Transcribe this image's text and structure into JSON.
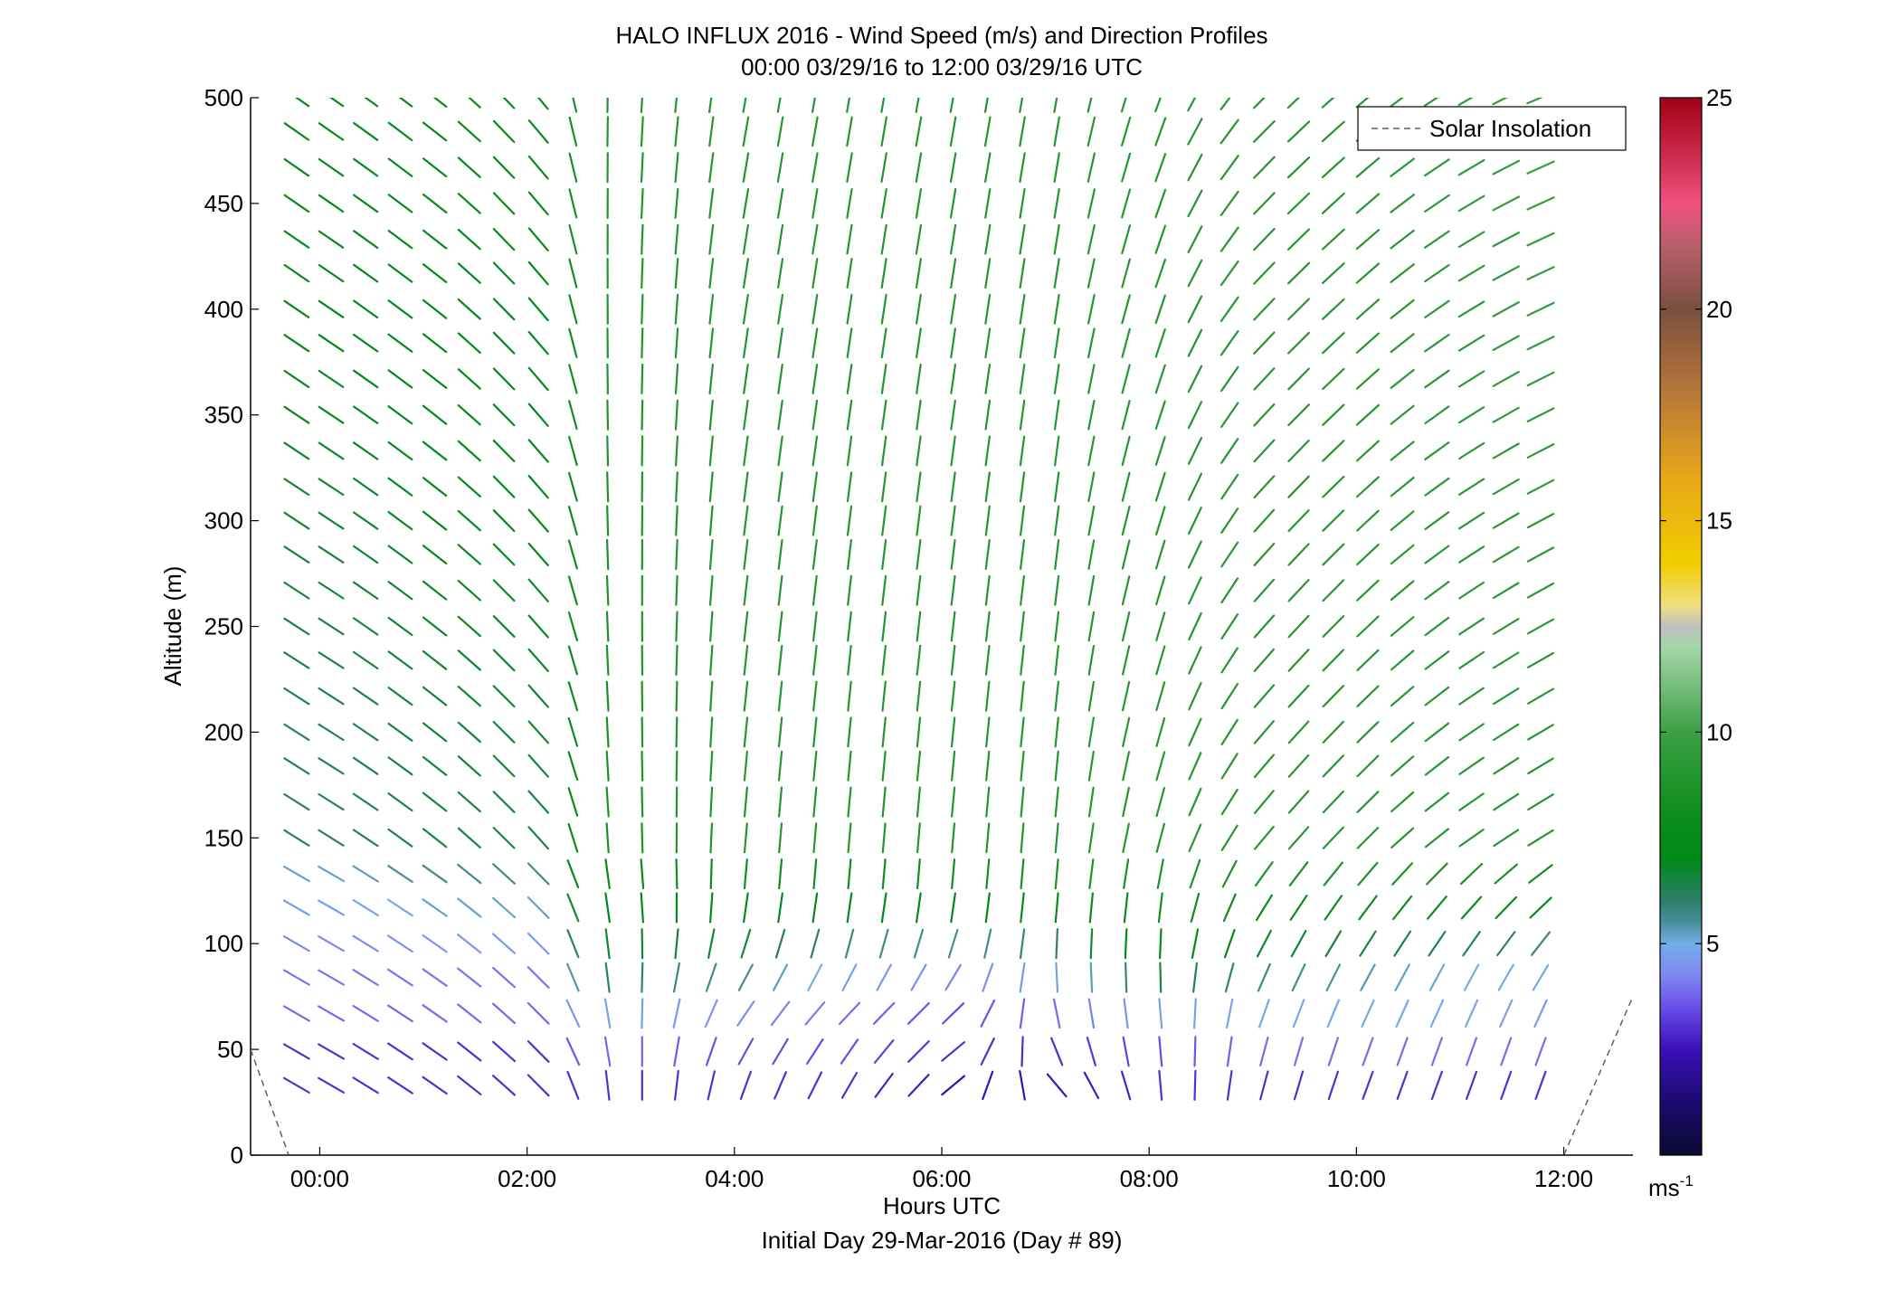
{
  "chart_data": {
    "type": "quiver",
    "title_line1": "HALO INFLUX 2016 - Wind Speed (m/s) and Direction Profiles",
    "title_line2": "00:00 03/29/16 to 12:00 03/29/16  UTC",
    "xlabel": "Hours UTC",
    "xlabel2": "Initial Day 29-Mar-2016 (Day # 89)",
    "ylabel": "Altitude (m)",
    "colorbar_label": "ms",
    "colorbar_label_sup": "-1",
    "legend_label": "Solar Insolation",
    "xlim_hours": [
      -0.667,
      12.667
    ],
    "ylim": [
      0,
      500
    ],
    "x_ticks": [
      {
        "h": 0,
        "label": "00:00"
      },
      {
        "h": 2,
        "label": "02:00"
      },
      {
        "h": 4,
        "label": "04:00"
      },
      {
        "h": 6,
        "label": "06:00"
      },
      {
        "h": 8,
        "label": "08:00"
      },
      {
        "h": 10,
        "label": "10:00"
      },
      {
        "h": 12,
        "label": "12:00"
      }
    ],
    "y_ticks": [
      {
        "v": 0,
        "label": "0"
      },
      {
        "v": 50,
        "label": "50"
      },
      {
        "v": 100,
        "label": "100"
      },
      {
        "v": 150,
        "label": "150"
      },
      {
        "v": 200,
        "label": "200"
      },
      {
        "v": 250,
        "label": "250"
      },
      {
        "v": 300,
        "label": "300"
      },
      {
        "v": 350,
        "label": "350"
      },
      {
        "v": 400,
        "label": "400"
      },
      {
        "v": 450,
        "label": "450"
      },
      {
        "v": 500,
        "label": "500"
      }
    ],
    "colorbar_ticks": [
      {
        "v": 5,
        "label": "5"
      },
      {
        "v": 10,
        "label": "10"
      },
      {
        "v": 15,
        "label": "15"
      },
      {
        "v": 20,
        "label": "20"
      },
      {
        "v": 25,
        "label": "25"
      }
    ],
    "colorbar_range": [
      0,
      25
    ],
    "colormap_stops": [
      {
        "v": 0,
        "c": "#0a0a30"
      },
      {
        "v": 1.2,
        "c": "#1a0a6e"
      },
      {
        "v": 2.5,
        "c": "#3a10b8"
      },
      {
        "v": 3.5,
        "c": "#6a4ee8"
      },
      {
        "v": 4.3,
        "c": "#7e8cf0"
      },
      {
        "v": 5.0,
        "c": "#72aee8"
      },
      {
        "v": 5.5,
        "c": "#4a8e9a"
      },
      {
        "v": 6.0,
        "c": "#2e7e6a"
      },
      {
        "v": 7.0,
        "c": "#008a18"
      },
      {
        "v": 8.0,
        "c": "#0c8c1c"
      },
      {
        "v": 10.0,
        "c": "#3ca044"
      },
      {
        "v": 12.0,
        "c": "#a4d6a8"
      },
      {
        "v": 12.5,
        "c": "#c0c0c0"
      },
      {
        "v": 13.0,
        "c": "#f0e080"
      },
      {
        "v": 14.0,
        "c": "#f0cc00"
      },
      {
        "v": 16.0,
        "c": "#e8a818"
      },
      {
        "v": 18.0,
        "c": "#b87838"
      },
      {
        "v": 20.0,
        "c": "#7a5040"
      },
      {
        "v": 21.5,
        "c": "#b8606a"
      },
      {
        "v": 22.5,
        "c": "#f05080"
      },
      {
        "v": 24.0,
        "c": "#c0203a"
      },
      {
        "v": 25.0,
        "c": "#a00018"
      }
    ],
    "solar_insolation": {
      "left": [
        [
          -0.667,
          50
        ],
        [
          -0.3,
          0
        ]
      ],
      "right": [
        [
          12.0,
          0
        ],
        [
          12.667,
          75
        ]
      ]
    },
    "times_h": [
      -0.333,
      0,
      0.333,
      0.667,
      1.0,
      1.333,
      1.667,
      2.0,
      2.333,
      2.667,
      3.0,
      3.333,
      3.667,
      4.0,
      4.333,
      4.667,
      5.0,
      5.333,
      5.667,
      6.0,
      6.333,
      6.667,
      7.0,
      7.333,
      7.667,
      8.0,
      8.333,
      8.667,
      9.0,
      9.333,
      9.667,
      10.0,
      10.333,
      10.667,
      11.0,
      11.333,
      11.667
    ],
    "altitudes": [
      33,
      49,
      67,
      84,
      100,
      117,
      133,
      150,
      167,
      184,
      200,
      217,
      234,
      250,
      267,
      284,
      300,
      316,
      333,
      350,
      367,
      384,
      400,
      417,
      433,
      450,
      467,
      484,
      500
    ],
    "profile_altitudes": [
      40,
      50,
      70,
      90,
      110,
      130,
      150,
      170,
      190,
      210,
      230,
      250,
      270,
      290,
      310,
      330,
      350,
      370,
      390,
      410,
      430,
      450
    ],
    "profiles": [
      {
        "t": 0,
        "a": [
          [
            120,
            3
          ],
          [
            120,
            3
          ],
          [
            120,
            4
          ],
          [
            120,
            4
          ],
          [
            120,
            4.5
          ],
          [
            120,
            5
          ],
          [
            122,
            6
          ],
          [
            125,
            7.5
          ]
        ]
      },
      {
        "t": 1,
        "a": [
          [
            125,
            3
          ],
          [
            125,
            3
          ],
          [
            125,
            4
          ],
          [
            125,
            4
          ],
          [
            125,
            5
          ],
          [
            125,
            5.5
          ],
          [
            128,
            6.5
          ],
          [
            128,
            7.5
          ]
        ]
      },
      {
        "t": 2,
        "a": [
          [
            135,
            3
          ],
          [
            135,
            3
          ],
          [
            135,
            4
          ],
          [
            135,
            4
          ],
          [
            135,
            5
          ],
          [
            135,
            5.5
          ],
          [
            138,
            6.5
          ],
          [
            140,
            7.5
          ]
        ]
      },
      {
        "t": 2.5,
        "a": [
          [
            170,
            3
          ],
          [
            165,
            4
          ],
          [
            165,
            5
          ],
          [
            170,
            6.5
          ],
          [
            170,
            7
          ],
          [
            170,
            7.5
          ],
          [
            175,
            8.5
          ],
          [
            180,
            9
          ]
        ]
      },
      {
        "t": 4,
        "a": [
          [
            200,
            3
          ],
          [
            210,
            3.5
          ],
          [
            215,
            4.5
          ],
          [
            205,
            6
          ],
          [
            190,
            7
          ],
          [
            185,
            8
          ],
          [
            185,
            9
          ],
          [
            190,
            9
          ]
        ]
      },
      {
        "t": 5,
        "a": [
          [
            210,
            3
          ],
          [
            215,
            3.5
          ],
          [
            225,
            4
          ],
          [
            200,
            5
          ],
          [
            190,
            6.5
          ],
          [
            185,
            8
          ],
          [
            185,
            9
          ],
          [
            190,
            9
          ]
        ]
      },
      {
        "t": 6,
        "a": [
          [
            230,
            2.5
          ],
          [
            230,
            3
          ],
          [
            225,
            3.5
          ],
          [
            205,
            4.5
          ],
          [
            190,
            6.5
          ],
          [
            185,
            8
          ],
          [
            185,
            9
          ],
          [
            190,
            9
          ]
        ]
      },
      {
        "t": 7,
        "a": [
          [
            140,
            2.5
          ],
          [
            160,
            3
          ],
          [
            170,
            4
          ],
          [
            180,
            5
          ],
          [
            185,
            7
          ],
          [
            185,
            8.5
          ],
          [
            185,
            9
          ],
          [
            190,
            9
          ]
        ]
      },
      {
        "t": 8,
        "a": [
          [
            175,
            3
          ],
          [
            175,
            3.5
          ],
          [
            175,
            5
          ],
          [
            180,
            7
          ],
          [
            185,
            8
          ],
          [
            190,
            8.5
          ],
          [
            195,
            9
          ],
          [
            200,
            9
          ]
        ]
      },
      {
        "t": 9,
        "a": [
          [
            195,
            3
          ],
          [
            195,
            4
          ],
          [
            200,
            5
          ],
          [
            205,
            6
          ],
          [
            210,
            7.5
          ],
          [
            215,
            8.5
          ],
          [
            220,
            9
          ],
          [
            225,
            9
          ]
        ]
      },
      {
        "t": 10,
        "a": [
          [
            200,
            3
          ],
          [
            200,
            4
          ],
          [
            205,
            5
          ],
          [
            210,
            5.5
          ],
          [
            215,
            7.5
          ],
          [
            220,
            8.5
          ],
          [
            225,
            9
          ],
          [
            230,
            9
          ]
        ]
      },
      {
        "t": 11,
        "a": [
          [
            200,
            3
          ],
          [
            200,
            4
          ],
          [
            205,
            5
          ],
          [
            210,
            5
          ],
          [
            220,
            7.5
          ],
          [
            225,
            8.5
          ],
          [
            235,
            9
          ],
          [
            240,
            9.5
          ]
        ]
      },
      {
        "t": 12,
        "a": [
          [
            200,
            3
          ],
          [
            200,
            4
          ],
          [
            205,
            4.5
          ],
          [
            215,
            5
          ],
          [
            225,
            6
          ],
          [
            235,
            8
          ],
          [
            240,
            9
          ],
          [
            250,
            10
          ]
        ]
      }
    ]
  }
}
